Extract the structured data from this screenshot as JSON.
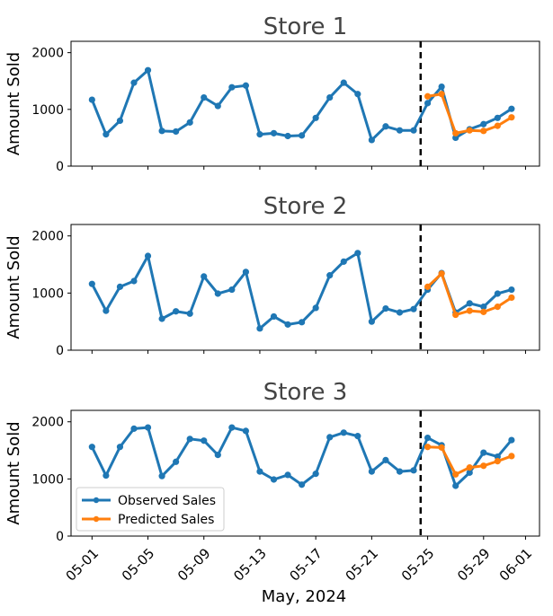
{
  "chart_data": {
    "type": "line",
    "x_start_label": "05-01",
    "x_tick_labels": [
      "05-01",
      "05-05",
      "05-09",
      "05-13",
      "05-17",
      "05-21",
      "05-25",
      "05-29",
      "06-01"
    ],
    "xlabel": "May, 2024",
    "ylabel": "Amount Sold",
    "y_ticks": [
      0,
      1000,
      2000
    ],
    "ylim": [
      0,
      2200
    ],
    "cutoff_x_label": "05-25",
    "legend": {
      "position": "lower-left",
      "labels": [
        "Observed Sales",
        "Predicted Sales"
      ]
    },
    "colors": {
      "observed": "#1f77b4",
      "predicted": "#ff7f0e",
      "cutoff": "#000000"
    },
    "panels": [
      {
        "title": "Store 1",
        "series": [
          {
            "name": "Observed Sales",
            "x": [
              "05-01",
              "05-02",
              "05-03",
              "05-04",
              "05-05",
              "05-06",
              "05-07",
              "05-08",
              "05-09",
              "05-10",
              "05-11",
              "05-12",
              "05-13",
              "05-14",
              "05-15",
              "05-16",
              "05-17",
              "05-18",
              "05-19",
              "05-20",
              "05-21",
              "05-22",
              "05-23",
              "05-24",
              "05-25",
              "05-26",
              "05-27",
              "05-28",
              "05-29",
              "05-30",
              "05-31"
            ],
            "values": [
              1170,
              560,
              800,
              1470,
              1690,
              620,
              610,
              770,
              1210,
              1060,
              1390,
              1420,
              560,
              580,
              530,
              540,
              850,
              1210,
              1470,
              1270,
              460,
              700,
              630,
              630,
              1110,
              1400,
              500,
              650,
              740,
              850,
              1010
            ]
          },
          {
            "name": "Predicted Sales",
            "x": [
              "05-25",
              "05-26",
              "05-27",
              "05-28",
              "05-29",
              "05-30",
              "05-31"
            ],
            "values": [
              1230,
              1270,
              580,
              630,
              620,
              710,
              860
            ]
          }
        ]
      },
      {
        "title": "Store 2",
        "series": [
          {
            "name": "Observed Sales",
            "x": [
              "05-01",
              "05-02",
              "05-03",
              "05-04",
              "05-05",
              "05-06",
              "05-07",
              "05-08",
              "05-09",
              "05-10",
              "05-11",
              "05-12",
              "05-13",
              "05-14",
              "05-15",
              "05-16",
              "05-17",
              "05-18",
              "05-19",
              "05-20",
              "05-21",
              "05-22",
              "05-23",
              "05-24",
              "05-25",
              "05-26",
              "05-27",
              "05-28",
              "05-29",
              "05-30",
              "05-31"
            ],
            "values": [
              1160,
              690,
              1110,
              1210,
              1650,
              550,
              680,
              640,
              1290,
              990,
              1060,
              1370,
              380,
              590,
              450,
              490,
              740,
              1310,
              1550,
              1700,
              500,
              730,
              660,
              720,
              1060,
              1350,
              660,
              820,
              760,
              990,
              1060
            ]
          },
          {
            "name": "Predicted Sales",
            "x": [
              "05-25",
              "05-26",
              "05-27",
              "05-28",
              "05-29",
              "05-30",
              "05-31"
            ],
            "values": [
              1110,
              1340,
              620,
              690,
              670,
              760,
              920
            ]
          }
        ]
      },
      {
        "title": "Store 3",
        "series": [
          {
            "name": "Observed Sales",
            "x": [
              "05-01",
              "05-02",
              "05-03",
              "05-04",
              "05-05",
              "05-06",
              "05-07",
              "05-08",
              "05-09",
              "05-10",
              "05-11",
              "05-12",
              "05-13",
              "05-14",
              "05-15",
              "05-16",
              "05-17",
              "05-18",
              "05-19",
              "05-20",
              "05-21",
              "05-22",
              "05-23",
              "05-24",
              "05-25",
              "05-26",
              "05-27",
              "05-28",
              "05-29",
              "05-30",
              "05-31"
            ],
            "values": [
              1560,
              1060,
              1560,
              1880,
              1900,
              1050,
              1300,
              1700,
              1670,
              1420,
              1900,
              1840,
              1130,
              990,
              1070,
              900,
              1090,
              1730,
              1810,
              1750,
              1130,
              1330,
              1130,
              1150,
              1720,
              1590,
              880,
              1110,
              1460,
              1390,
              1680
            ]
          },
          {
            "name": "Predicted Sales",
            "x": [
              "05-25",
              "05-26",
              "05-27",
              "05-28",
              "05-29",
              "05-30",
              "05-31"
            ],
            "values": [
              1560,
              1550,
              1080,
              1200,
              1230,
              1310,
              1400
            ]
          }
        ]
      }
    ]
  }
}
